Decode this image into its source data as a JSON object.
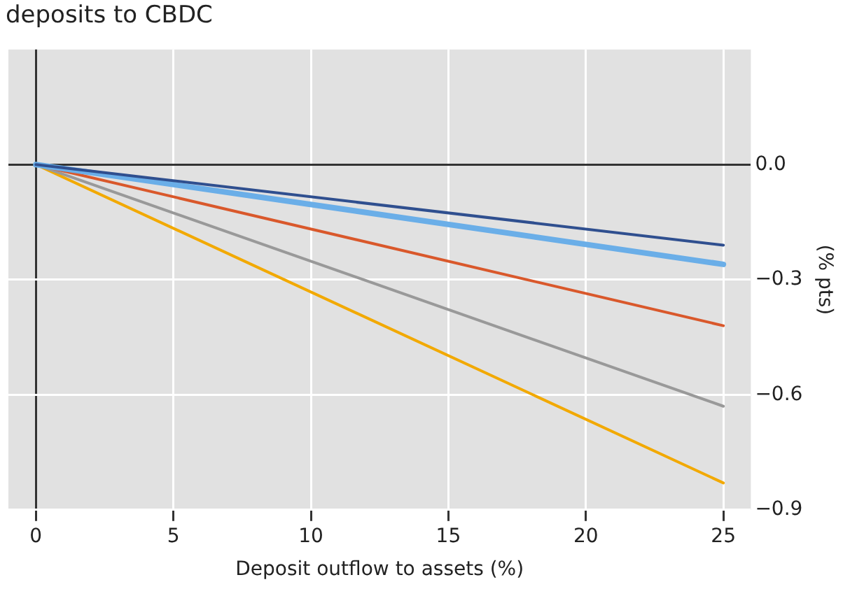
{
  "chart_data": {
    "type": "line",
    "title": "deposits to CBDC",
    "xlabel": "Deposit outflow to assets (%)",
    "ylabel": "(% pts)",
    "x": [
      0,
      25
    ],
    "xlim": [
      -1,
      26
    ],
    "xticks": [
      0,
      5,
      10,
      15,
      20,
      25
    ],
    "ylim": [
      -0.9,
      0.3
    ],
    "yticks": [
      {
        "value": 0,
        "label": "0.0"
      },
      {
        "value": -0.3,
        "label": "−0.3"
      },
      {
        "value": -0.6,
        "label": "−0.6"
      },
      {
        "value": -0.9,
        "label": "−0.9"
      }
    ],
    "series": [
      {
        "color": "#2f4f8f",
        "values": [
          0,
          -0.21
        ]
      },
      {
        "color": "#6aaee8",
        "values": [
          0,
          -0.26
        ]
      },
      {
        "color": "#d9582b",
        "values": [
          0,
          -0.42
        ]
      },
      {
        "color": "#999999",
        "values": [
          0,
          -0.63
        ]
      },
      {
        "color": "#f2a900",
        "values": [
          0,
          -0.83
        ]
      }
    ],
    "grid": true,
    "legend": false,
    "marker": "none",
    "line_style": "solid"
  }
}
